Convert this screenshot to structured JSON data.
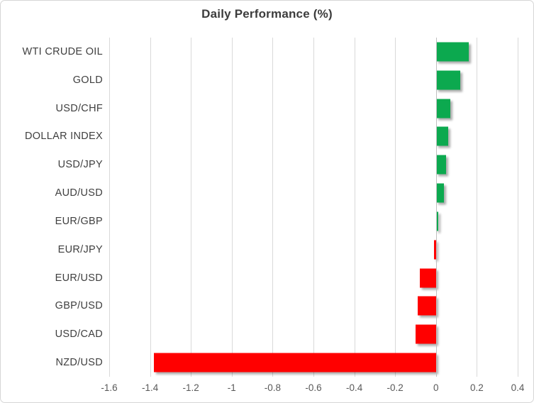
{
  "chart_data": {
    "type": "bar",
    "orientation": "horizontal",
    "title": "Daily Performance (%)",
    "categories": [
      "WTI CRUDE OIL",
      "GOLD",
      "USD/CHF",
      "DOLLAR INDEX",
      "USD/JPY",
      "AUD/USD",
      "EUR/GBP",
      "EUR/JPY",
      "EUR/USD",
      "GBP/USD",
      "USD/CAD",
      "NZD/USD"
    ],
    "values": [
      0.16,
      0.12,
      0.07,
      0.06,
      0.05,
      0.04,
      0.01,
      -0.01,
      -0.08,
      -0.09,
      -0.1,
      -1.38
    ],
    "xlabel": "",
    "ylabel": "",
    "xlim": [
      -1.6,
      0.4
    ],
    "xticks": [
      -1.6,
      -1.4,
      -1.2,
      -1,
      -0.8,
      -0.6,
      -0.4,
      -0.2,
      0,
      0.2,
      0.4
    ],
    "xtick_labels": [
      "-1.6",
      "-1.4",
      "-1.2",
      "-1",
      "-0.8",
      "-0.6",
      "-0.4",
      "-0.2",
      "0",
      "0.2",
      "0.4"
    ],
    "grid": true,
    "legend": false,
    "colors": {
      "positive": "#0ca94f",
      "negative": "#ff0000",
      "gridline": "#d9d9d9",
      "zero_line": "#bfbfbf",
      "title_text": "#3c3c3c",
      "tick_text": "#595959"
    }
  }
}
